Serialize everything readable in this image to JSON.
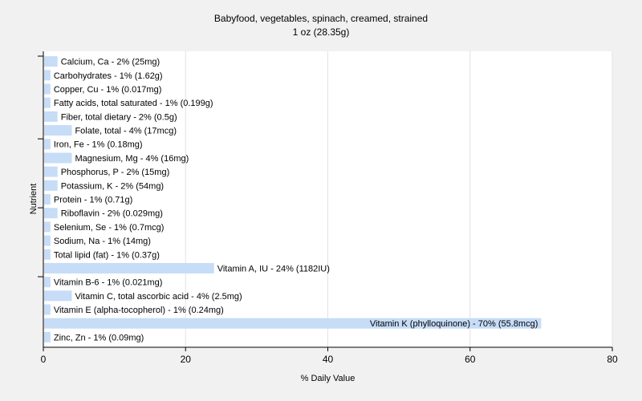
{
  "chart_data": {
    "type": "bar",
    "orientation": "horizontal",
    "title": "Babyfood, vegetables, spinach, creamed, strained",
    "subtitle": "1 oz (28.35g)",
    "xlabel": "% Daily Value",
    "ylabel": "Nutrient",
    "xlim": [
      0,
      80
    ],
    "xticks": [
      "0",
      "20",
      "40",
      "60",
      "80"
    ],
    "grid": true,
    "bar_color": "#c6dcf7",
    "categories": [
      "Calcium, Ca",
      "Carbohydrates",
      "Copper, Cu",
      "Fatty acids, total saturated",
      "Fiber, total dietary",
      "Folate, total",
      "Iron, Fe",
      "Magnesium, Mg",
      "Phosphorus, P",
      "Potassium, K",
      "Protein",
      "Riboflavin",
      "Selenium, Se",
      "Sodium, Na",
      "Total lipid (fat)",
      "Vitamin A, IU",
      "Vitamin B-6",
      "Vitamin C, total ascorbic acid",
      "Vitamin E (alpha-tocopherol)",
      "Vitamin K (phylloquinone)",
      "Zinc, Zn"
    ],
    "values": [
      2,
      1,
      1,
      1,
      2,
      4,
      1,
      4,
      2,
      2,
      1,
      2,
      1,
      1,
      1,
      24,
      1,
      4,
      1,
      70,
      1
    ],
    "labels": [
      "Calcium, Ca - 2% (25mg)",
      "Carbohydrates - 1% (1.62g)",
      "Copper, Cu - 1% (0.017mg)",
      "Fatty acids, total saturated - 1% (0.199g)",
      "Fiber, total dietary - 2% (0.5g)",
      "Folate, total - 4% (17mcg)",
      "Iron, Fe - 1% (0.18mg)",
      "Magnesium, Mg - 4% (16mg)",
      "Phosphorus, P - 2% (15mg)",
      "Potassium, K - 2% (54mg)",
      "Protein - 1% (0.71g)",
      "Riboflavin - 2% (0.029mg)",
      "Selenium, Se - 1% (0.7mcg)",
      "Sodium, Na - 1% (14mg)",
      "Total lipid (fat) - 1% (0.37g)",
      "Vitamin A, IU - 24% (1182IU)",
      "Vitamin B-6 - 1% (0.021mg)",
      "Vitamin C, total ascorbic acid - 4% (2.5mg)",
      "Vitamin E (alpha-tocopherol) - 1% (0.24mg)",
      "Vitamin K (phylloquinone) - 70% (55.8mcg)",
      "Zinc, Zn - 1% (0.09mg)"
    ]
  }
}
